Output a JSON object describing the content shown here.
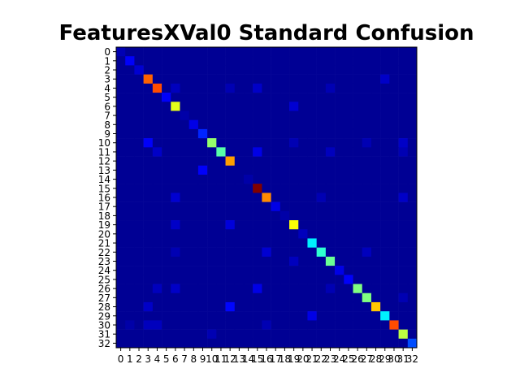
{
  "chart_data": {
    "type": "heatmap",
    "title": "FeaturesXVal0 Standard Confusion",
    "xlabel": "",
    "ylabel": "",
    "colormap": "jet",
    "value_range": [
      0,
      1
    ],
    "x_labels": [
      "0",
      "1",
      "2",
      "3",
      "4",
      "5",
      "6",
      "7",
      "8",
      "9",
      "10",
      "11",
      "12",
      "13",
      "14",
      "15",
      "16",
      "17",
      "18",
      "19",
      "20",
      "21",
      "22",
      "23",
      "24",
      "25",
      "26",
      "27",
      "28",
      "29",
      "30",
      "31",
      "32"
    ],
    "y_labels": [
      "0",
      "1",
      "2",
      "3",
      "4",
      "5",
      "6",
      "7",
      "8",
      "9",
      "10",
      "11",
      "12",
      "13",
      "14",
      "15",
      "16",
      "17",
      "18",
      "19",
      "20",
      "21",
      "22",
      "23",
      "24",
      "25",
      "26",
      "27",
      "28",
      "29",
      "30",
      "31",
      "32"
    ],
    "diagonal": [
      0.05,
      0.12,
      0.08,
      0.78,
      0.8,
      0.12,
      0.6,
      0.04,
      0.1,
      0.16,
      0.52,
      0.46,
      0.72,
      0.02,
      0.04,
      1.0,
      0.74,
      0.1,
      0.04,
      0.62,
      0.06,
      0.36,
      0.42,
      0.48,
      0.1,
      0.12,
      0.5,
      0.5,
      0.68,
      0.36,
      0.8,
      0.56,
      0.2
    ],
    "off_diagonal": [
      {
        "row": 3,
        "col": 29,
        "value": 0.07
      },
      {
        "row": 4,
        "col": 6,
        "value": 0.06
      },
      {
        "row": 4,
        "col": 12,
        "value": 0.05
      },
      {
        "row": 4,
        "col": 15,
        "value": 0.07
      },
      {
        "row": 4,
        "col": 23,
        "value": 0.05
      },
      {
        "row": 6,
        "col": 19,
        "value": 0.08
      },
      {
        "row": 10,
        "col": 3,
        "value": 0.12
      },
      {
        "row": 10,
        "col": 19,
        "value": 0.05
      },
      {
        "row": 10,
        "col": 27,
        "value": 0.05
      },
      {
        "row": 10,
        "col": 31,
        "value": 0.07
      },
      {
        "row": 11,
        "col": 4,
        "value": 0.07
      },
      {
        "row": 11,
        "col": 15,
        "value": 0.1
      },
      {
        "row": 11,
        "col": 23,
        "value": 0.06
      },
      {
        "row": 11,
        "col": 31,
        "value": 0.05
      },
      {
        "row": 13,
        "col": 9,
        "value": 0.12
      },
      {
        "row": 16,
        "col": 6,
        "value": 0.08
      },
      {
        "row": 16,
        "col": 22,
        "value": 0.05
      },
      {
        "row": 16,
        "col": 31,
        "value": 0.07
      },
      {
        "row": 19,
        "col": 6,
        "value": 0.07
      },
      {
        "row": 19,
        "col": 12,
        "value": 0.09
      },
      {
        "row": 22,
        "col": 6,
        "value": 0.05
      },
      {
        "row": 22,
        "col": 16,
        "value": 0.08
      },
      {
        "row": 22,
        "col": 27,
        "value": 0.06
      },
      {
        "row": 23,
        "col": 19,
        "value": 0.06
      },
      {
        "row": 26,
        "col": 4,
        "value": 0.06
      },
      {
        "row": 26,
        "col": 6,
        "value": 0.07
      },
      {
        "row": 26,
        "col": 15,
        "value": 0.1
      },
      {
        "row": 26,
        "col": 23,
        "value": 0.05
      },
      {
        "row": 27,
        "col": 31,
        "value": 0.05
      },
      {
        "row": 28,
        "col": 3,
        "value": 0.07
      },
      {
        "row": 28,
        "col": 12,
        "value": 0.13
      },
      {
        "row": 29,
        "col": 21,
        "value": 0.1
      },
      {
        "row": 30,
        "col": 1,
        "value": 0.04
      },
      {
        "row": 30,
        "col": 3,
        "value": 0.06
      },
      {
        "row": 30,
        "col": 4,
        "value": 0.06
      },
      {
        "row": 30,
        "col": 16,
        "value": 0.05
      },
      {
        "row": 31,
        "col": 10,
        "value": 0.05
      }
    ],
    "background_value": 0.02,
    "grid": false
  }
}
